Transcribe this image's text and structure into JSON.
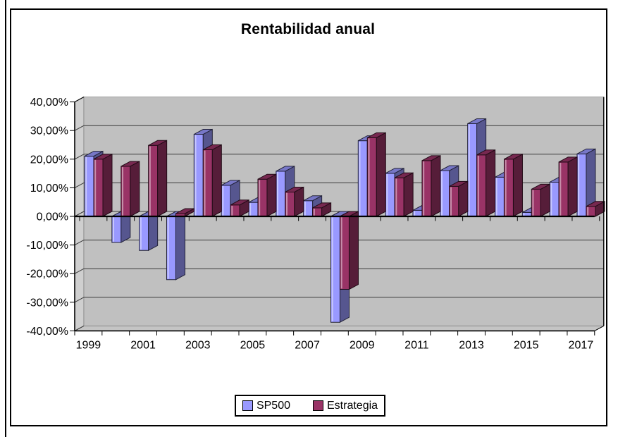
{
  "colors": {
    "background": "#FFFFFF",
    "border": "#000000",
    "plot_back_wall": "#C0C0C0",
    "plot_side_wall": "#CFCFCF",
    "plot_floor": "#C4C4C4",
    "gridline": "#3A3A3A",
    "axis": "#000000",
    "text": "#000000"
  },
  "chart_data": {
    "type": "bar",
    "title": "Rentabilidad anual",
    "style": "3d-effect-clustered-columns",
    "categories": [
      "1999",
      "2000",
      "2001",
      "2002",
      "2003",
      "2004",
      "2005",
      "2006",
      "2007",
      "2008",
      "2009",
      "2010",
      "2011",
      "2012",
      "2013",
      "2014",
      "2015",
      "2016",
      "2017"
    ],
    "x_tick_labels": [
      "1999",
      "2001",
      "2003",
      "2005",
      "2007",
      "2009",
      "2011",
      "2013",
      "2015",
      "2017"
    ],
    "series": [
      {
        "name": "SP500",
        "color": "#9999FF",
        "values": [
          21.04,
          -9.1,
          -11.89,
          -22.1,
          28.68,
          10.88,
          4.91,
          15.79,
          5.49,
          -37.0,
          26.46,
          15.06,
          2.11,
          16.0,
          32.39,
          13.69,
          1.38,
          11.96,
          21.83
        ]
      },
      {
        "name": "Estrategia",
        "color": "#993366",
        "values": [
          20.0,
          17.5,
          24.8,
          1.0,
          23.3,
          4.0,
          13.0,
          8.5,
          3.0,
          -25.5,
          27.5,
          13.5,
          19.5,
          10.5,
          21.5,
          20.0,
          9.5,
          19.0,
          3.5
        ]
      }
    ],
    "ylim": [
      -40,
      40
    ],
    "y_tick_step": 10,
    "y_tick_labels": [
      "40,00%",
      "30,00%",
      "20,00%",
      "10,00%",
      "0,00%",
      "-10,00%",
      "-20,00%",
      "-30,00%",
      "-40,00%"
    ],
    "grid": true,
    "legend_position": "bottom",
    "number_format": "percent-comma-decimal"
  }
}
